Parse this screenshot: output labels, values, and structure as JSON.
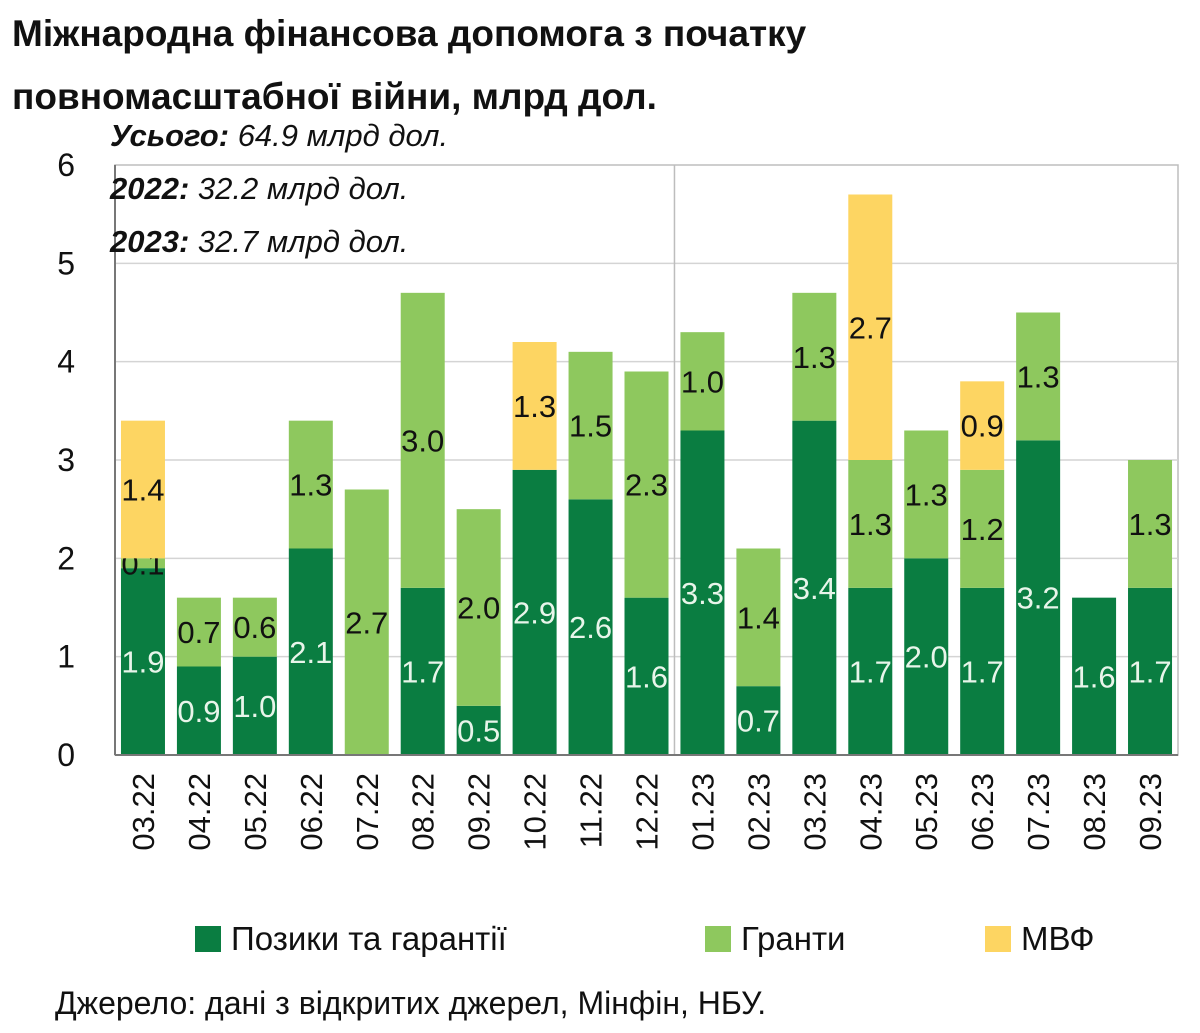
{
  "chart_data": {
    "type": "bar",
    "stacked": true,
    "title_line1": "Міжнародна фінансова допомога з початку",
    "title_line2": "повномасштабної війни, млрд дол.",
    "annotations": [
      {
        "label": "Усього:",
        "text": " 64.9 млрд дол."
      },
      {
        "label": "2022:",
        "text": " 32.2 млрд дол."
      },
      {
        "label": "2023:",
        "text": " 32.7 млрд дол."
      }
    ],
    "categories": [
      "03.22",
      "04.22",
      "05.22",
      "06.22",
      "07.22",
      "08.22",
      "09.22",
      "10.22",
      "11.22",
      "12.22",
      "01.23",
      "02.23",
      "03.23",
      "04.23",
      "05.23",
      "06.23",
      "07.23",
      "08.23",
      "09.23"
    ],
    "series": [
      {
        "name": "Позики та гарантії",
        "color": "#0a7d41",
        "label_color": "#e8f5ea",
        "values": [
          1.9,
          0.9,
          1.0,
          2.1,
          0,
          1.7,
          0.5,
          2.9,
          2.6,
          1.6,
          3.3,
          0.7,
          3.4,
          1.7,
          2.0,
          1.7,
          3.2,
          1.6,
          1.7
        ]
      },
      {
        "name": "Гранти",
        "color": "#8ec85e",
        "label_color": "#111111",
        "values": [
          0.1,
          0.7,
          0.6,
          1.3,
          2.7,
          3.0,
          2.0,
          0,
          1.5,
          2.3,
          1.0,
          1.4,
          1.3,
          1.3,
          1.3,
          1.2,
          1.3,
          0,
          1.3
        ]
      },
      {
        "name": "МВФ",
        "color": "#fdd562",
        "label_color": "#111111",
        "values": [
          1.4,
          0,
          0,
          0,
          0,
          0,
          0,
          1.3,
          0,
          0,
          0,
          0,
          0,
          2.7,
          0,
          0.9,
          0,
          0,
          0
        ]
      }
    ],
    "xlabel": "",
    "ylabel": "",
    "ylim": [
      0,
      6
    ],
    "yticks": [
      0,
      1,
      2,
      3,
      4,
      5,
      6
    ],
    "grid": true,
    "legend_position": "bottom"
  },
  "source": "Джерело: дані з відкритих джерел, Мінфін, НБУ."
}
